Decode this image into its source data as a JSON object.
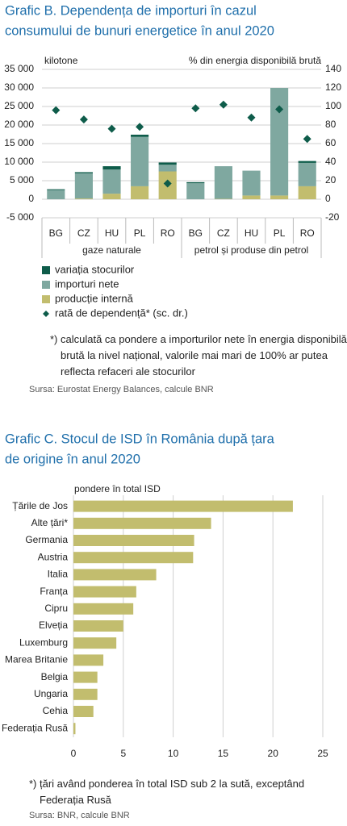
{
  "chart_data": [
    {
      "type": "bar",
      "stacked": true,
      "title": [
        "Grafic B. Dependența de importuri în cazul",
        "consumului de bunuri energetice în anul 2020"
      ],
      "ylabel": "kilotone",
      "y2label": "% din energia disponibilă brută",
      "categories": [
        "BG",
        "CZ",
        "HU",
        "PL",
        "RO",
        "BG",
        "CZ",
        "HU",
        "PL",
        "RO"
      ],
      "group_labels": [
        "gaze naturale",
        "petrol și produse din petrol"
      ],
      "series": [
        {
          "name": "variația stocurilor",
          "color": "#0e5c4a",
          "values": [
            200,
            300,
            900,
            600,
            600,
            300,
            0,
            0,
            0,
            500
          ]
        },
        {
          "name": "importuri nete",
          "color": "#7fa8a0",
          "values": [
            2500,
            6800,
            6500,
            13300,
            1800,
            4300,
            8800,
            6700,
            29000,
            6300
          ]
        },
        {
          "name": "producție internă",
          "color": "#c2bd6e",
          "values": [
            0,
            200,
            1500,
            3500,
            7500,
            0,
            100,
            1000,
            1000,
            3500
          ]
        },
        {
          "name": "rată de dependență* (sc. dr.)",
          "color": "#0e5c4a",
          "marker": "diamond",
          "axis": "y2",
          "values": [
            96,
            86,
            76,
            78,
            17,
            98,
            102,
            88,
            97,
            65
          ]
        }
      ],
      "ylim": [
        -5000,
        35000
      ],
      "yticks": [
        {
          "value": 35000,
          "label": "35 000"
        },
        {
          "value": 30000,
          "label": "30 000"
        },
        {
          "value": 25000,
          "label": "25 000"
        },
        {
          "value": 20000,
          "label": "20 000"
        },
        {
          "value": 15000,
          "label": "15 000"
        },
        {
          "value": 10000,
          "label": "10 000"
        },
        {
          "value": 5000,
          "label": "5 000"
        },
        0,
        {
          "value": -5000,
          "label": "-5 000"
        }
      ],
      "y2lim": [
        -20,
        140
      ],
      "y2ticks": [
        140,
        120,
        100,
        80,
        60,
        40,
        20,
        0,
        -20
      ],
      "grid": true,
      "note": "*) calculată ca pondere a importurilor nete în energia disponibilă brută la nivel național, valorile mai mari de 100% ar putea reflecta refaceri ale stocurilor",
      "source": "Sursa: Eurostat Energy Balances, calcule BNR"
    },
    {
      "type": "bar",
      "orientation": "horizontal",
      "title": [
        "Grafic C. Stocul de ISD în România după țara",
        "de origine în anul 2020"
      ],
      "subtitle": "pondere în total ISD",
      "categories": [
        "Țările de Jos",
        "Alte țări*",
        "Germania",
        "Austria",
        "Italia",
        "Franța",
        "Cipru",
        "Elveția",
        "Luxemburg",
        "Marea Britanie",
        "Belgia",
        "Ungaria",
        "Cehia",
        "Federația Rusă"
      ],
      "values": [
        22,
        13.8,
        12.1,
        12,
        8.3,
        6.3,
        6,
        5,
        4.3,
        3,
        2.4,
        2.4,
        2,
        0.2
      ],
      "color": "#c2bd6e",
      "xlim": [
        0,
        25
      ],
      "xticks": [
        0,
        5,
        10,
        15,
        20,
        25
      ],
      "grid": true,
      "note": "*) țări având ponderea în total ISD sub 2 la sută, exceptând Federația Rusă",
      "source": "Sursa: BNR, calcule BNR"
    }
  ]
}
